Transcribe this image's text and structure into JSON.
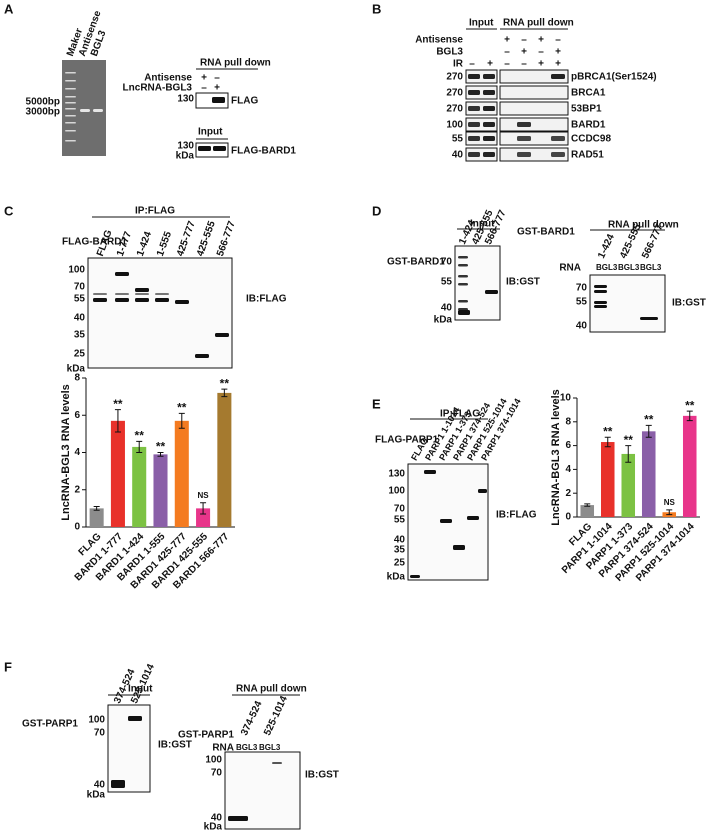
{
  "panel_a": {
    "label": "A",
    "lanes": [
      "Maker",
      "Antisense",
      "BGL3"
    ],
    "markers": [
      "5000bp",
      "3000bp"
    ],
    "pulldown_title": "RNA pull down",
    "rows": [
      {
        "name": "Antisense",
        "signs": [
          "+",
          "–"
        ]
      },
      {
        "name": "LncRNA-BGL3",
        "signs": [
          "–",
          "+"
        ]
      }
    ],
    "pulldown_mw": 130,
    "pulldown_ib": "FLAG",
    "input_title": "Input",
    "input_mw": 130,
    "kda": "kDa",
    "input_ib": "FLAG-BARD1"
  },
  "panel_b": {
    "label": "B",
    "input_title": "Input",
    "pulldown_title": "RNA pull down",
    "rows": [
      {
        "name": "Antisense",
        "signs": [
          "+",
          "–",
          "+",
          "–"
        ]
      },
      {
        "name": "BGL3",
        "signs": [
          "–",
          "+",
          "–",
          "+"
        ]
      },
      {
        "name": "IR",
        "signs": [
          "–",
          "+",
          "–",
          "–",
          "+",
          "+"
        ]
      }
    ],
    "blots": [
      {
        "mw": 270,
        "name": "pBRCA1(Ser1524)"
      },
      {
        "mw": 270,
        "name": "BRCA1"
      },
      {
        "mw": 270,
        "name": "53BP1"
      },
      {
        "mw": 100,
        "name": "BARD1"
      },
      {
        "mw": 55,
        "name": "CCDC98"
      },
      {
        "mw": 40,
        "name": "RAD51"
      }
    ]
  },
  "panel_c": {
    "label": "C",
    "ip_title": "IP:FLAG",
    "construct": "FLAG-BARD1",
    "lanes": [
      "FLAG",
      "1-777",
      "1-424",
      "1-555",
      "425-777",
      "425-555",
      "566-777"
    ],
    "markers": [
      100,
      70,
      55,
      40,
      35,
      25
    ],
    "kda": "kDa",
    "ib": "IB:FLAG",
    "chart": {
      "type": "bar",
      "y_label": "LncRNA-BGL3 RNA levels",
      "categories": [
        "FLAG",
        "BARD1 1-777",
        "BARD1 1-424",
        "BARD1 1-555",
        "BARD1 425-777",
        "BARD1 425-555",
        "BARD1 566-777"
      ],
      "values": [
        1.0,
        5.7,
        4.3,
        3.9,
        5.7,
        1.0,
        7.2
      ],
      "errors": [
        0.1,
        0.6,
        0.3,
        0.1,
        0.4,
        0.3,
        0.2
      ],
      "significance": [
        null,
        "**",
        "**",
        "**",
        "**",
        "NS",
        "**"
      ],
      "colors": [
        "#8c8c8c",
        "#e8312a",
        "#7cc243",
        "#8a5fa8",
        "#f47b20",
        "#e8358a",
        "#a57a2f"
      ],
      "ylim": [
        0,
        8
      ],
      "yticks": [
        0,
        2,
        4,
        6,
        8
      ]
    }
  },
  "panel_d": {
    "label": "D",
    "input_title": "Input",
    "construct": "GST-BARD1",
    "lanes": [
      "1-424",
      "425-555",
      "566-777"
    ],
    "input_markers": [
      70,
      55,
      40
    ],
    "kda": "kDa",
    "ib": "IB:GST",
    "pulldown_title": "RNA pull down",
    "pulldown_construct": "GST-BARD1",
    "pulldown_lanes": [
      "1-424",
      "425-555",
      "566-777"
    ],
    "rna_label": "RNA",
    "rna_lanes": [
      "BGL3",
      "BGL3",
      "BGL3"
    ],
    "pulldown_markers": [
      70,
      55,
      40
    ],
    "pulldown_ib": "IB:GST"
  },
  "panel_e": {
    "label": "E",
    "ip_title": "IP:FLAG",
    "construct": "FLAG-PARP1",
    "lanes": [
      "FLAG",
      "PARP1 1-1014",
      "PARP1 1-373",
      "PARP1 374-524",
      "PARP1 525-1014",
      "PARP1 374-1014"
    ],
    "markers": [
      130,
      100,
      70,
      55,
      40,
      35,
      25
    ],
    "kda": "kDa",
    "ib": "IB:FLAG",
    "chart": {
      "type": "bar",
      "y_label": "LncRNA-BGL3 RNA levels",
      "categories": [
        "FLAG",
        "PARP1 1-1014",
        "PARP1 1-373",
        "PARP1 374-524",
        "PARP1 525-1014",
        "PARP1 374-1014"
      ],
      "values": [
        1.0,
        6.3,
        5.3,
        7.2,
        0.4,
        8.5
      ],
      "errors": [
        0.1,
        0.4,
        0.7,
        0.5,
        0.2,
        0.4
      ],
      "significance": [
        null,
        "**",
        "**",
        "**",
        "NS",
        "**"
      ],
      "colors": [
        "#8c8c8c",
        "#e8312a",
        "#7cc243",
        "#8a5fa8",
        "#f47b20",
        "#e8358a"
      ],
      "ylim": [
        0,
        10
      ],
      "yticks": [
        0,
        2,
        4,
        6,
        8,
        10
      ]
    }
  },
  "panel_f": {
    "label": "F",
    "input_title": "Input",
    "construct": "GST-PARP1",
    "lanes": [
      "374-524",
      "525-1014"
    ],
    "input_markers": [
      100,
      70,
      40
    ],
    "kda": "kDa",
    "ib": "IB:GST",
    "pulldown_title": "RNA pull down",
    "pulldown_construct": "GST-PARP1",
    "pulldown_lanes": [
      "374-524",
      "525-1014"
    ],
    "rna_label": "RNA",
    "rna_lanes": [
      "BGL3",
      "BGL3"
    ],
    "pulldown_markers": [
      100,
      70,
      40
    ],
    "pulldown_ib": "IB:GST"
  }
}
